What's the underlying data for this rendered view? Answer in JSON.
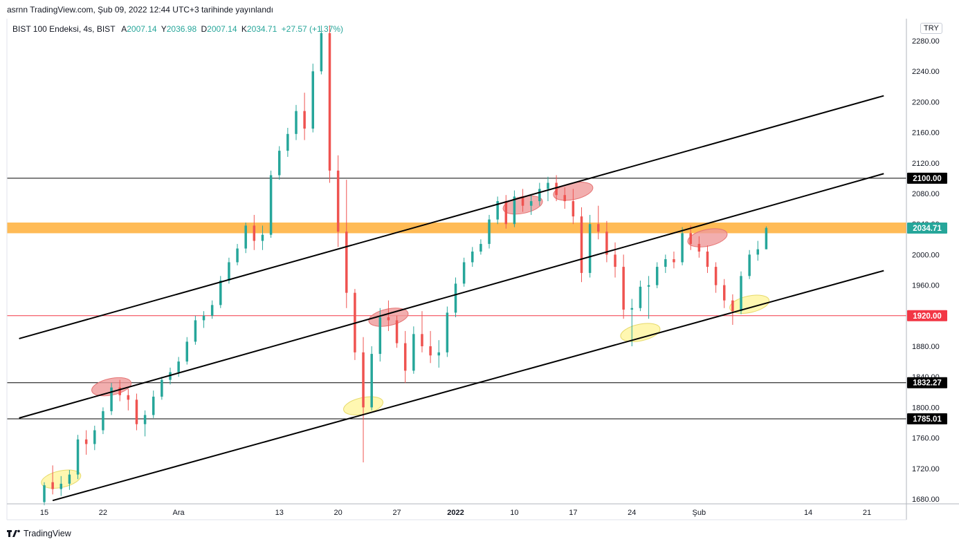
{
  "publisher_line": "asrnn TradingView.com, Şub 09, 2022 12:44 UTC+3 tarihinde yayınlandı",
  "brand": "TradingView",
  "brand_icon": "tradingview-logo-icon",
  "currency": "TRY",
  "legend": {
    "symbol": "BIST 100 Endeksi, 4s, BIST",
    "ohlc": [
      {
        "k": "A",
        "v": "2007.14"
      },
      {
        "k": "Y",
        "v": "2036.98"
      },
      {
        "k": "D",
        "v": "2007.14"
      },
      {
        "k": "K",
        "v": "2034.71"
      }
    ],
    "change": "+27.57 (+1.37%)"
  },
  "colors": {
    "up": "#26a69a",
    "down": "#ef5350",
    "zone": "#ffb74d",
    "support_red": "#f23645",
    "ellipse_red": "#ef9a9a",
    "ellipse_yellow": "#fff59d"
  },
  "chart_data": {
    "type": "candlestick",
    "title": "",
    "y_ticks": [
      2280,
      2240,
      2200,
      2160,
      2120,
      2080,
      2040,
      2000,
      1960,
      1920,
      1880,
      1840,
      1800,
      1760,
      1720,
      1680
    ],
    "x_ticks": [
      {
        "label": "15",
        "date": "2021-11-15"
      },
      {
        "label": "22",
        "date": "2021-11-22"
      },
      {
        "label": "Ara",
        "date": "2021-12-01"
      },
      {
        "label": "13",
        "date": "2021-12-13"
      },
      {
        "label": "20",
        "date": "2021-12-20"
      },
      {
        "label": "27",
        "date": "2021-12-27"
      },
      {
        "label": "2022",
        "date": "2022-01-03"
      },
      {
        "label": "10",
        "date": "2022-01-10"
      },
      {
        "label": "17",
        "date": "2022-01-17"
      },
      {
        "label": "24",
        "date": "2022-01-24"
      },
      {
        "label": "Şub",
        "date": "2022-02-01"
      },
      {
        "label": "14",
        "date": "2022-02-14"
      },
      {
        "label": "21",
        "date": "2022-02-21"
      }
    ],
    "x_range": [
      "2021-11-15",
      "2022-02-21"
    ],
    "y_range": [
      1668,
      2298
    ],
    "price_tags": [
      {
        "value": 2100.0,
        "text": "2100.00",
        "kind": "black"
      },
      {
        "value": 2034.71,
        "text": "2034.71",
        "kind": "green"
      },
      {
        "value": 1920.0,
        "text": "1920.00",
        "kind": "red"
      },
      {
        "value": 1832.27,
        "text": "1832.27",
        "kind": "black"
      },
      {
        "value": 1785.01,
        "text": "1785.01",
        "kind": "black"
      }
    ],
    "horizontal_lines": [
      {
        "value": 2100,
        "color": "black"
      },
      {
        "value": 1920,
        "color": "red"
      },
      {
        "value": 1832.27,
        "color": "black"
      },
      {
        "value": 1785.01,
        "color": "black"
      }
    ],
    "zone": {
      "from": 2028,
      "to": 2042
    },
    "trendlines": [
      {
        "from": [
          "2021-11-12",
          1890
        ],
        "to": [
          "2022-02-23",
          2208
        ]
      },
      {
        "from": [
          "2021-11-12",
          1786
        ],
        "to": [
          "2022-02-23",
          2106
        ]
      },
      {
        "from": [
          "2021-11-16",
          1678
        ],
        "to": [
          "2022-02-23",
          1979
        ]
      }
    ],
    "ellipses": [
      {
        "date": "2021-11-17",
        "price": 1706,
        "color": "yellow"
      },
      {
        "date": "2021-11-23",
        "price": 1827,
        "color": "red"
      },
      {
        "date": "2021-12-23",
        "price": 1802,
        "color": "yellow"
      },
      {
        "date": "2021-12-26",
        "price": 1918,
        "color": "red"
      },
      {
        "date": "2022-01-11",
        "price": 2065,
        "color": "red"
      },
      {
        "date": "2022-01-17",
        "price": 2083,
        "color": "red"
      },
      {
        "date": "2022-01-25",
        "price": 1898,
        "color": "yellow"
      },
      {
        "date": "2022-02-02",
        "price": 2022,
        "color": "red"
      },
      {
        "date": "2022-02-07",
        "price": 1935,
        "color": "yellow"
      }
    ],
    "candles": [
      [
        "2021-11-15",
        1676,
        1702,
        1672,
        1698
      ],
      [
        "2021-11-16",
        1702,
        1724,
        1686,
        1693
      ],
      [
        "2021-11-17",
        1693,
        1710,
        1684,
        1700
      ],
      [
        "2021-11-18",
        1700,
        1718,
        1692,
        1712
      ],
      [
        "2021-11-19",
        1712,
        1764,
        1706,
        1758
      ],
      [
        "2021-11-20",
        1758,
        1770,
        1738,
        1752
      ],
      [
        "2021-11-21",
        1752,
        1776,
        1744,
        1770
      ],
      [
        "2021-11-22",
        1770,
        1800,
        1765,
        1795
      ],
      [
        "2021-11-23",
        1795,
        1832,
        1790,
        1826
      ],
      [
        "2021-11-24",
        1826,
        1836,
        1808,
        1816
      ],
      [
        "2021-11-25",
        1816,
        1824,
        1796,
        1810
      ],
      [
        "2021-11-26",
        1810,
        1818,
        1770,
        1778
      ],
      [
        "2021-11-27",
        1778,
        1796,
        1762,
        1790
      ],
      [
        "2021-11-28",
        1790,
        1822,
        1786,
        1814
      ],
      [
        "2021-11-29",
        1814,
        1840,
        1810,
        1836
      ],
      [
        "2021-11-30",
        1836,
        1852,
        1830,
        1846
      ],
      [
        "2021-12-01",
        1846,
        1866,
        1840,
        1860
      ],
      [
        "2021-12-02",
        1860,
        1892,
        1856,
        1886
      ],
      [
        "2021-12-03",
        1886,
        1920,
        1882,
        1914
      ],
      [
        "2021-12-04",
        1914,
        1926,
        1904,
        1920
      ],
      [
        "2021-12-05",
        1920,
        1940,
        1916,
        1934
      ],
      [
        "2021-12-06",
        1934,
        1972,
        1930,
        1966
      ],
      [
        "2021-12-07",
        1966,
        1996,
        1962,
        1990
      ],
      [
        "2021-12-08",
        1990,
        2014,
        1986,
        2008
      ],
      [
        "2021-12-09",
        2008,
        2042,
        2002,
        2038
      ],
      [
        "2021-12-10",
        2038,
        2052,
        2006,
        2018
      ],
      [
        "2021-12-11",
        2018,
        2038,
        2006,
        2026
      ],
      [
        "2021-12-12",
        2026,
        2110,
        2022,
        2104
      ],
      [
        "2021-12-13",
        2104,
        2142,
        2098,
        2136
      ],
      [
        "2021-12-14",
        2136,
        2166,
        2128,
        2158
      ],
      [
        "2021-12-15",
        2158,
        2196,
        2150,
        2188
      ],
      [
        "2021-12-16",
        2188,
        2212,
        2150,
        2165
      ],
      [
        "2021-12-17",
        2165,
        2250,
        2160,
        2240
      ],
      [
        "2021-12-18",
        2240,
        2300,
        2236,
        2290
      ],
      [
        "2021-12-19",
        2290,
        2300,
        2094,
        2110
      ],
      [
        "2021-12-20",
        2110,
        2130,
        2010,
        2030
      ],
      [
        "2021-12-21",
        2030,
        2098,
        1930,
        1950
      ],
      [
        "2021-12-22",
        1950,
        1955,
        1862,
        1872
      ],
      [
        "2021-12-23",
        1872,
        1892,
        1728,
        1800
      ],
      [
        "2021-12-24",
        1800,
        1880,
        1796,
        1870
      ],
      [
        "2021-12-25",
        1870,
        1930,
        1860,
        1918
      ],
      [
        "2021-12-26",
        1918,
        1940,
        1900,
        1914
      ],
      [
        "2021-12-27",
        1914,
        1920,
        1878,
        1884
      ],
      [
        "2021-12-28",
        1884,
        1900,
        1832,
        1848
      ],
      [
        "2021-12-29",
        1848,
        1906,
        1844,
        1896
      ],
      [
        "2021-12-30",
        1896,
        1926,
        1872,
        1880
      ],
      [
        "2021-12-31",
        1880,
        1900,
        1858,
        1868
      ],
      [
        "2022-01-01",
        1868,
        1888,
        1852,
        1872
      ],
      [
        "2022-01-02",
        1872,
        1932,
        1866,
        1924
      ],
      [
        "2022-01-03",
        1924,
        1970,
        1918,
        1962
      ],
      [
        "2022-01-04",
        1962,
        1996,
        1958,
        1990
      ],
      [
        "2022-01-05",
        1990,
        2010,
        1984,
        2004
      ],
      [
        "2022-01-06",
        2004,
        2020,
        2000,
        2014
      ],
      [
        "2022-01-07",
        2014,
        2052,
        2008,
        2046
      ],
      [
        "2022-01-08",
        2046,
        2076,
        2040,
        2070
      ],
      [
        "2022-01-09",
        2070,
        2078,
        2034,
        2040
      ],
      [
        "2022-01-10",
        2040,
        2084,
        2036,
        2076
      ],
      [
        "2022-01-11",
        2076,
        2086,
        2056,
        2064
      ],
      [
        "2022-01-12",
        2064,
        2078,
        2052,
        2070
      ],
      [
        "2022-01-13",
        2070,
        2094,
        2064,
        2086
      ],
      [
        "2022-01-14",
        2086,
        2102,
        2070,
        2094
      ],
      [
        "2022-01-15",
        2094,
        2104,
        2070,
        2078
      ],
      [
        "2022-01-16",
        2078,
        2088,
        2060,
        2070
      ],
      [
        "2022-01-17",
        2070,
        2086,
        2040,
        2050
      ],
      [
        "2022-01-18",
        2050,
        2062,
        1964,
        1976
      ],
      [
        "2022-01-19",
        1976,
        2052,
        1970,
        2040
      ],
      [
        "2022-01-20",
        2040,
        2064,
        2020,
        2030
      ],
      [
        "2022-01-21",
        2030,
        2044,
        1990,
        2000
      ],
      [
        "2022-01-22",
        2000,
        2016,
        1970,
        1984
      ],
      [
        "2022-01-23",
        1984,
        2000,
        1916,
        1928
      ],
      [
        "2022-01-24",
        1928,
        1942,
        1880,
        1930
      ],
      [
        "2022-01-25",
        1930,
        1966,
        1926,
        1958
      ],
      [
        "2022-01-26",
        1958,
        1972,
        1916,
        1960
      ],
      [
        "2022-01-27",
        1960,
        1990,
        1956,
        1984
      ],
      [
        "2022-01-28",
        1984,
        2000,
        1976,
        1994
      ],
      [
        "2022-01-29",
        1994,
        2004,
        1982,
        1990
      ],
      [
        "2022-01-30",
        1990,
        2036,
        1986,
        2028
      ],
      [
        "2022-01-31",
        2028,
        2038,
        2006,
        2014
      ],
      [
        "2022-02-01",
        2014,
        2024,
        1996,
        2004
      ],
      [
        "2022-02-02",
        2004,
        2012,
        1976,
        1984
      ],
      [
        "2022-02-03",
        1984,
        1990,
        1950,
        1960
      ],
      [
        "2022-02-04",
        1960,
        1968,
        1930,
        1940
      ],
      [
        "2022-02-05",
        1940,
        1948,
        1908,
        1926
      ],
      [
        "2022-02-06",
        1926,
        1978,
        1922,
        1972
      ],
      [
        "2022-02-07",
        1972,
        2006,
        1968,
        2000
      ],
      [
        "2022-02-08",
        2000,
        2018,
        1992,
        2007
      ],
      [
        "2022-02-09",
        2007,
        2037,
        2007,
        2035
      ]
    ]
  }
}
